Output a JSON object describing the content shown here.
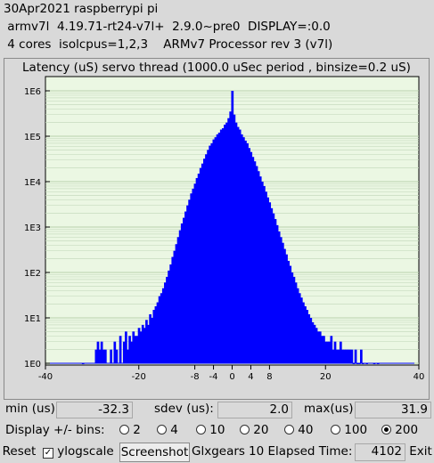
{
  "header": {
    "line1": "30Apr2021 raspberrypi pi",
    "line2": " armv7l  4.19.71-rt24-v7l+  2.9.0~pre0  DISPLAY=:0.0",
    "line3": " 4 cores  isolcpus=1,2,3    ARMv7 Processor rev 3 (v7l)"
  },
  "chart_data": {
    "type": "bar",
    "title": "Latency (uS) servo thread (1000.0 uSec period , binsize=0.2 uS)",
    "xlabel": "",
    "ylabel": "",
    "xlim": [
      -40,
      40
    ],
    "xticks": [
      "-40",
      "-20",
      "-8",
      "-4",
      "0",
      "4",
      "8",
      "20",
      "40"
    ],
    "xtick_values": [
      -40,
      -20,
      -8,
      -4,
      0,
      4,
      8,
      20,
      40
    ],
    "y_scale": "log",
    "ylim": [
      1,
      1000000
    ],
    "yticks": [
      "1E0",
      "1E1",
      "1E2",
      "1E3",
      "1E4",
      "1E5",
      "1E6"
    ],
    "grid": true,
    "bar_color": "#0000ff",
    "background_color": "#ebf7e3",
    "binsize": 0.2,
    "x": [
      -32,
      -29.2,
      -28.8,
      -28.4,
      -28,
      -27.6,
      -27.2,
      -26,
      -25.2,
      -24.8,
      -24,
      -23.2,
      -22.8,
      -22.4,
      -22,
      -21.6,
      -21.2,
      -20.8,
      -20.4,
      -20,
      -19.6,
      -19.2,
      -18.8,
      -18.4,
      -18,
      -17.6,
      -17.2,
      -16.8,
      -16.4,
      -16,
      -15.6,
      -15.2,
      -14.8,
      -14.4,
      -14,
      -13.6,
      -13.2,
      -12.8,
      -12.4,
      -12,
      -11.6,
      -11.2,
      -10.8,
      -10.4,
      -10,
      -9.6,
      -9.2,
      -8.8,
      -8.4,
      -8,
      -7.6,
      -7.2,
      -6.8,
      -6.4,
      -6,
      -5.6,
      -5.2,
      -4.8,
      -4.4,
      -4,
      -3.6,
      -3.2,
      -2.8,
      -2.4,
      -2,
      -1.6,
      -1.2,
      -0.8,
      -0.4,
      0,
      0.4,
      0.8,
      1.2,
      1.6,
      2,
      2.4,
      2.8,
      3.2,
      3.6,
      4,
      4.4,
      4.8,
      5.2,
      5.6,
      6,
      6.4,
      6.8,
      7.2,
      7.6,
      8,
      8.4,
      8.8,
      9.2,
      9.6,
      10,
      10.4,
      10.8,
      11.2,
      11.6,
      12,
      12.4,
      12.8,
      13.2,
      13.6,
      14,
      14.4,
      14.8,
      15.2,
      15.6,
      16,
      16.4,
      16.8,
      17.2,
      17.6,
      18,
      18.4,
      18.8,
      19.2,
      19.6,
      20,
      20.4,
      20.8,
      21.2,
      21.6,
      22,
      22.4,
      22.8,
      23.2,
      23.6,
      24,
      24.4,
      24.8,
      25.2,
      25.6,
      26,
      26.4,
      26.8,
      27.2,
      27.6,
      28,
      28.8,
      30.4,
      31.2
    ],
    "values": [
      1,
      2,
      3,
      2,
      3,
      2,
      2,
      2,
      3,
      2,
      4,
      3,
      5,
      2,
      4,
      3,
      5,
      4,
      4,
      6,
      5,
      7,
      6,
      9,
      7,
      12,
      10,
      15,
      18,
      22,
      30,
      35,
      45,
      60,
      80,
      110,
      150,
      220,
      300,
      420,
      600,
      850,
      1200,
      1600,
      2200,
      3000,
      4000,
      5500,
      7000,
      9000,
      12000,
      15000,
      20000,
      25000,
      32000,
      40000,
      50000,
      62000,
      70000,
      85000,
      95000,
      110000,
      120000,
      140000,
      150000,
      180000,
      200000,
      250000,
      350000,
      1000000,
      300000,
      200000,
      160000,
      140000,
      110000,
      95000,
      80000,
      70000,
      55000,
      45000,
      35000,
      28000,
      22000,
      17000,
      13000,
      10000,
      8000,
      6000,
      4500,
      3500,
      2600,
      2000,
      1500,
      1100,
      800,
      600,
      450,
      330,
      250,
      180,
      140,
      100,
      80,
      60,
      45,
      35,
      28,
      22,
      18,
      15,
      12,
      10,
      8,
      7,
      6,
      5,
      5,
      4,
      4,
      3,
      3,
      3,
      4,
      2,
      3,
      2,
      2,
      3,
      2,
      2,
      2,
      2,
      2,
      2,
      1,
      2,
      1,
      1,
      2,
      1,
      1,
      1,
      1
    ]
  },
  "stats": {
    "min_label": "min (us)",
    "min_value": "-32.3",
    "sdev_label": "sdev (us):",
    "sdev_value": "2.0",
    "max_label": "max(us)",
    "max_value": "31.9"
  },
  "bins": {
    "label": "Display +/- bins:",
    "options": [
      "2",
      "4",
      "10",
      "20",
      "40",
      "100",
      "200"
    ],
    "selected": "200"
  },
  "footer": {
    "reset": "Reset",
    "ylogscale": "ylogscale",
    "ylogscale_checked": true,
    "screenshot": "Screenshot",
    "glxgears": "Glxgears",
    "elapsed_label": "10 Elapsed Time:",
    "elapsed_value": "4102",
    "exit": "Exit"
  }
}
